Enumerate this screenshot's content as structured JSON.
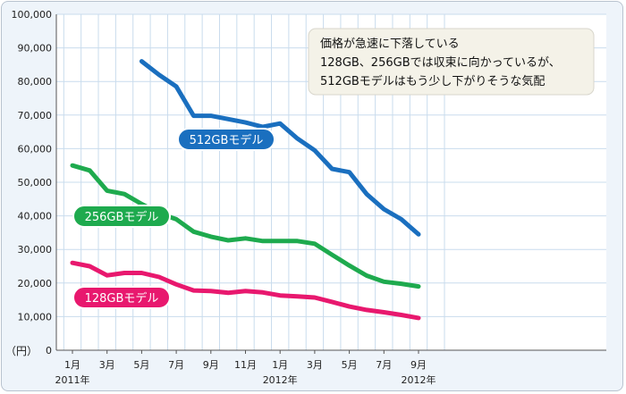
{
  "chart_data": {
    "type": "line",
    "ylabel": "（円）",
    "ylim": [
      0,
      100000
    ],
    "y_ticks": [
      "0",
      "10,000",
      "20,000",
      "30,000",
      "40,000",
      "50,000",
      "60,000",
      "70,000",
      "80,000",
      "90,000",
      "100,000"
    ],
    "x_ticks": [
      {
        "month": 1,
        "label": "1月",
        "sub": "2011年"
      },
      {
        "month": 3,
        "label": "3月",
        "sub": ""
      },
      {
        "month": 5,
        "label": "5月",
        "sub": ""
      },
      {
        "month": 7,
        "label": "7月",
        "sub": ""
      },
      {
        "month": 9,
        "label": "9月",
        "sub": ""
      },
      {
        "month": 11,
        "label": "11月",
        "sub": ""
      },
      {
        "month": 13,
        "label": "1月",
        "sub": "2012年"
      },
      {
        "month": 15,
        "label": "3月",
        "sub": ""
      },
      {
        "month": 17,
        "label": "5月",
        "sub": ""
      },
      {
        "month": 19,
        "label": "7月",
        "sub": ""
      },
      {
        "month": 21,
        "label": "9月",
        "sub": "2012年"
      }
    ],
    "series": [
      {
        "name": "512GBモデル",
        "color": "#1a6fbf",
        "months": [
          5,
          6,
          7,
          8,
          9,
          10,
          11,
          12,
          13,
          14,
          15,
          16,
          17,
          18,
          19,
          20,
          21
        ],
        "values": [
          86000,
          82000,
          78500,
          69800,
          69800,
          68800,
          67800,
          66500,
          67500,
          63000,
          59500,
          54000,
          53000,
          46500,
          42000,
          39000,
          34500
        ]
      },
      {
        "name": "256GBモデル",
        "color": "#1eaa4e",
        "months": [
          1,
          2,
          3,
          4,
          5,
          6,
          7,
          8,
          9,
          10,
          11,
          12,
          13,
          14,
          15,
          16,
          17,
          18,
          19,
          20,
          21
        ],
        "values": [
          55000,
          53500,
          47500,
          46500,
          43500,
          40800,
          39000,
          35300,
          33800,
          32700,
          33300,
          32500,
          32500,
          32500,
          31700,
          28400,
          25200,
          22200,
          20400,
          19800,
          19000
        ]
      },
      {
        "name": "128GBモデル",
        "color": "#e8186e",
        "months": [
          1,
          2,
          3,
          4,
          5,
          6,
          7,
          8,
          9,
          10,
          11,
          12,
          13,
          14,
          15,
          16,
          17,
          18,
          19,
          20,
          21
        ],
        "values": [
          26000,
          25000,
          22300,
          23000,
          23000,
          21800,
          19600,
          17800,
          17600,
          17100,
          17600,
          17200,
          16300,
          16000,
          15700,
          14400,
          13000,
          12000,
          11300,
          10500,
          9600
        ]
      }
    ],
    "annotation": [
      "価格が急速に下落している",
      "128GB、256GBでは収束に向かっているが、",
      "512GBモデルはもう少し下がりそうな気配"
    ],
    "grid": true
  }
}
